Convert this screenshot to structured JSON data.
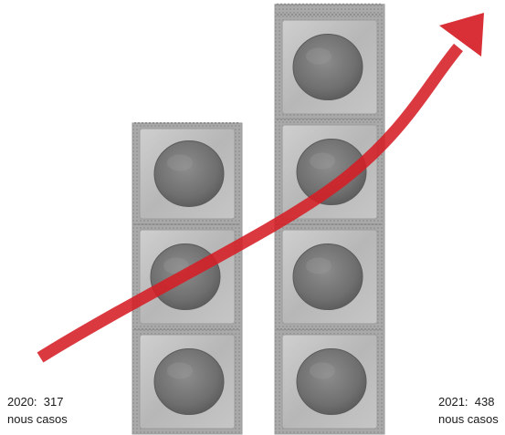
{
  "chart_data": {
    "type": "bar",
    "categories": [
      "2020",
      "2021"
    ],
    "values": [
      317,
      438
    ],
    "unit_text": "nous casos",
    "labels": [
      {
        "year": "2020:",
        "value": "317",
        "unit": "nous casos"
      },
      {
        "year": "2021:",
        "value": "438",
        "unit": "nous casos"
      }
    ],
    "trend": "increasing"
  },
  "colors": {
    "arrow": "#d51e25",
    "packet_edge": "#9a9a9a",
    "packet_fill": "#b4b4b4",
    "disc": "#7a7a7a"
  }
}
